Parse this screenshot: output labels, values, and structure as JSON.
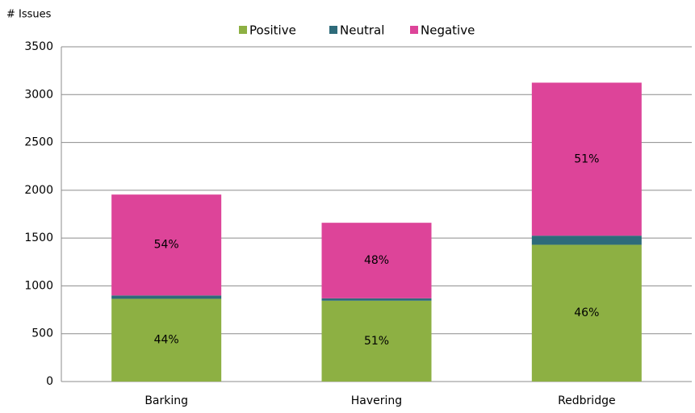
{
  "chart_data": {
    "type": "stacked_bar",
    "y_label": "# Issues",
    "categories": [
      "Barking",
      "Havering",
      "Redbridge"
    ],
    "series": [
      {
        "name": "Positive",
        "color": "#8db043",
        "values": [
          865,
          845,
          1430
        ],
        "labels": [
          "44%",
          "51%",
          "46%"
        ]
      },
      {
        "name": "Neutral",
        "color": "#2e6b7a",
        "values": [
          35,
          25,
          95
        ]
      },
      {
        "name": "Negative",
        "color": "#dd4499",
        "values": [
          1055,
          790,
          1600
        ],
        "labels": [
          "54%",
          "48%",
          "51%"
        ]
      }
    ],
    "ylim": [
      0,
      3500
    ],
    "yticks": [
      0,
      500,
      1000,
      1500,
      2000,
      2500,
      3000,
      3500
    ],
    "grid": true,
    "legend": "top"
  }
}
